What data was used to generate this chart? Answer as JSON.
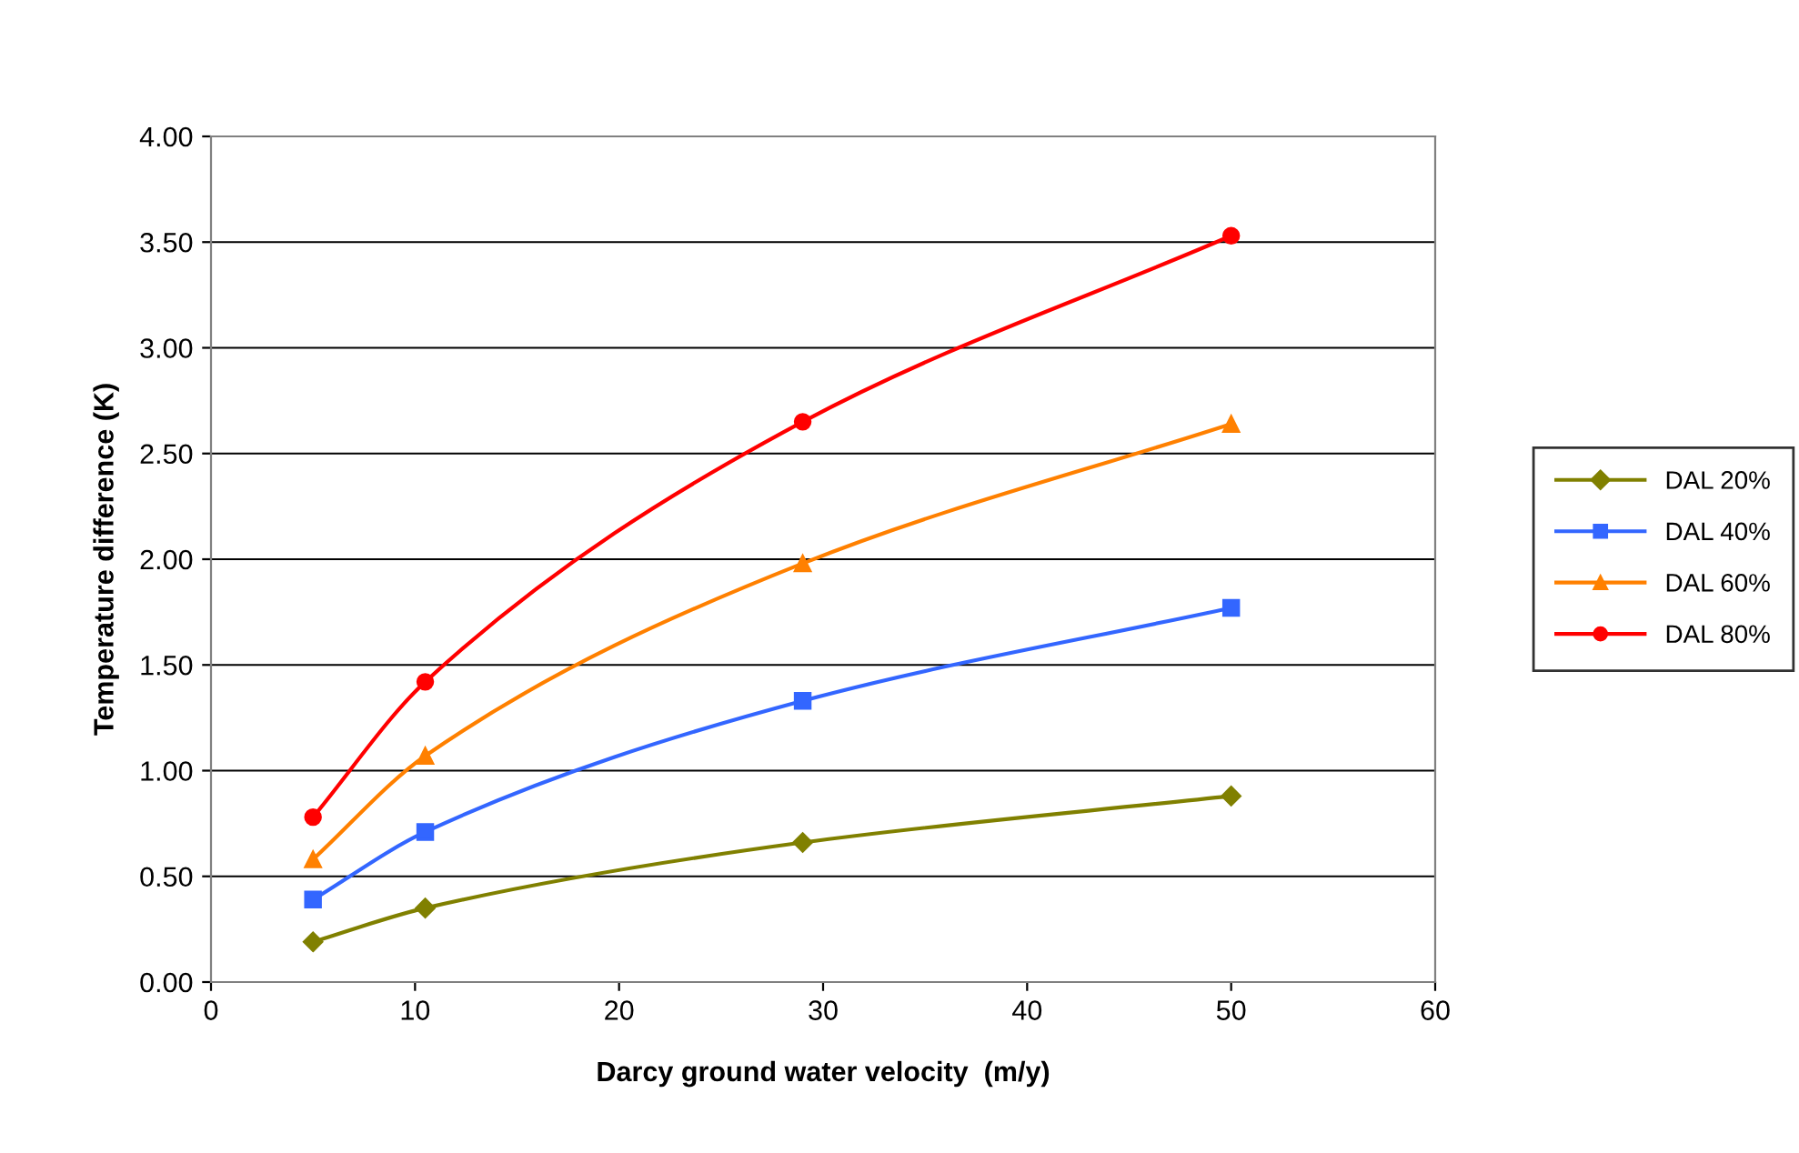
{
  "chart_data": {
    "type": "line",
    "xlabel": "Darcy ground water velocity  (m/y)",
    "ylabel": "Temperature difference (K)",
    "x": [
      5,
      10.5,
      29,
      50
    ],
    "series": [
      {
        "name": "DAL 20%",
        "color": "#808000",
        "marker": "diamond",
        "values": [
          0.19,
          0.35,
          0.66,
          0.88
        ]
      },
      {
        "name": "DAL 40%",
        "color": "#3366ff",
        "marker": "square",
        "values": [
          0.39,
          0.71,
          1.33,
          1.77
        ]
      },
      {
        "name": "DAL 60%",
        "color": "#ff8000",
        "marker": "triangle",
        "values": [
          0.58,
          1.07,
          1.98,
          2.64
        ]
      },
      {
        "name": "DAL 80%",
        "color": "#ff0000",
        "marker": "circle",
        "values": [
          0.78,
          1.42,
          2.65,
          3.53
        ]
      }
    ],
    "xlim": [
      0,
      60
    ],
    "xticks": [
      0,
      10,
      20,
      30,
      40,
      50,
      60
    ],
    "ylim": [
      0,
      4
    ],
    "yticks": [
      {
        "value": 0,
        "label": "0.00"
      },
      {
        "value": 0.5,
        "label": "0.50"
      },
      {
        "value": 1,
        "label": "1.00"
      },
      {
        "value": 1.5,
        "label": "1.50"
      },
      {
        "value": 2,
        "label": "2.00"
      },
      {
        "value": 2.5,
        "label": "2.50"
      },
      {
        "value": 3,
        "label": "3.00"
      },
      {
        "value": 3.5,
        "label": "3.50"
      },
      {
        "value": 4,
        "label": "4.00"
      }
    ],
    "grid": "y",
    "legend": "right",
    "line_style": "solid"
  }
}
